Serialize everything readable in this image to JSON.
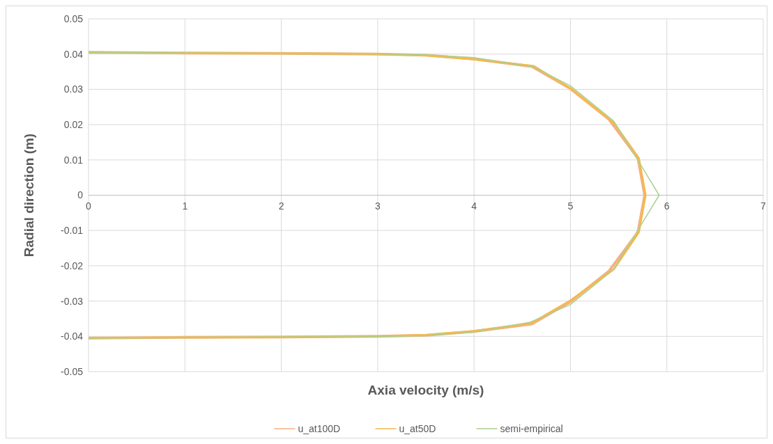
{
  "chart_data": {
    "type": "line",
    "xlabel": "Axia velocity (m/s)",
    "ylabel": "Radial direction (m)",
    "xlim": [
      0,
      7
    ],
    "xticks": [
      0,
      1,
      2,
      3,
      4,
      5,
      6,
      7
    ],
    "ylim": [
      -0.05,
      0.05
    ],
    "yticks": [
      -0.05,
      -0.04,
      -0.03,
      -0.02,
      -0.01,
      0,
      0.01,
      0.02,
      0.03,
      0.04,
      0.05
    ],
    "grid": true,
    "legend": "bottom",
    "line_style": "solid",
    "marker": "none",
    "series": [
      {
        "name": "u_at100D",
        "color": "#f4b183",
        "x": [
          0,
          1,
          2,
          3,
          3.5,
          4,
          4.6,
          5,
          5.4,
          5.7,
          5.77,
          5.7,
          5.4,
          5,
          4.6,
          4,
          3.5,
          3,
          2,
          1,
          0
        ],
        "values": [
          0.0405,
          0.0403,
          0.0402,
          0.04,
          0.0397,
          0.0386,
          0.0365,
          0.0302,
          0.0215,
          0.0105,
          0,
          -0.0105,
          -0.0215,
          -0.0302,
          -0.0365,
          -0.0386,
          -0.0397,
          -0.04,
          -0.0402,
          -0.0403,
          -0.0405
        ]
      },
      {
        "name": "u_at50D",
        "color": "#f5b94a",
        "x": [
          0,
          1,
          2,
          3,
          3.5,
          4,
          4.62,
          5,
          5.45,
          5.71,
          5.78,
          5.71,
          5.45,
          5,
          4.6,
          4,
          3.5,
          3,
          2,
          1,
          0
        ],
        "values": [
          0.0405,
          0.0403,
          0.0402,
          0.04,
          0.0396,
          0.0385,
          0.0366,
          0.0303,
          0.0205,
          0.0105,
          0,
          -0.0105,
          -0.021,
          -0.0298,
          -0.0362,
          -0.0385,
          -0.0396,
          -0.04,
          -0.0402,
          -0.0403,
          -0.0405
        ]
      },
      {
        "name": "semi-empirical",
        "color": "#a9d18e",
        "x": [
          0,
          1,
          2,
          3,
          3.5,
          4,
          4.62,
          5,
          5.45,
          5.72,
          5.92,
          5.72,
          5.45,
          5,
          4.58,
          4,
          3.5,
          3,
          2,
          1,
          0
        ],
        "values": [
          0.0405,
          0.0403,
          0.0402,
          0.0401,
          0.0398,
          0.039,
          0.0363,
          0.031,
          0.021,
          0.009,
          0,
          -0.009,
          -0.021,
          -0.031,
          -0.036,
          -0.0388,
          -0.0398,
          -0.0401,
          -0.0402,
          -0.0403,
          -0.0405
        ]
      }
    ]
  }
}
